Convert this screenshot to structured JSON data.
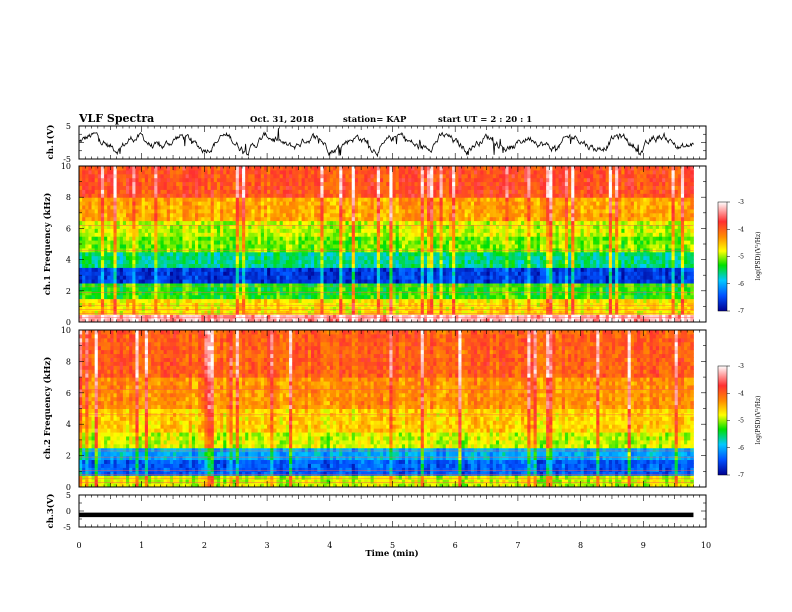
{
  "header": {
    "title": "VLF Spectra",
    "date": "Oct. 31, 2018",
    "station": "station= KAP",
    "start": "start  UT =   2 : 20 : 1"
  },
  "chart_data": [
    {
      "id": "ch1-waveform",
      "type": "line",
      "ylabel": "ch.1(V)",
      "ylim": [
        -5,
        5
      ],
      "yticks": [
        "5",
        "-5"
      ],
      "xlim": [
        0,
        10
      ],
      "x_end": 9.8,
      "trace": "noisy waveform, mostly between -3 and +3 V"
    },
    {
      "id": "ch1-spectrogram",
      "type": "heatmap",
      "ylabel": "ch.1 Frequency  (kHz)",
      "ylim": [
        0,
        10
      ],
      "yticks": [
        "0",
        "2",
        "4",
        "6",
        "8",
        "10"
      ],
      "xlim": [
        0,
        10
      ],
      "x_end": 9.8,
      "colorbar": {
        "label": "log(PSD)(V²/Hz)",
        "range": [
          -7,
          -3
        ],
        "ticks": [
          "-3",
          "-4",
          "-5",
          "-6",
          "-7"
        ]
      },
      "bands": [
        {
          "from": 0,
          "to": 0.4,
          "level": -3.3
        },
        {
          "from": 0.4,
          "to": 1.6,
          "level": -4.7
        },
        {
          "from": 1.6,
          "to": 2.6,
          "level": -5.3
        },
        {
          "from": 2.6,
          "to": 3.4,
          "level": -6.6
        },
        {
          "from": 3.4,
          "to": 4.4,
          "level": -5.6
        },
        {
          "from": 4.4,
          "to": 5.4,
          "level": -5.1
        },
        {
          "from": 5.4,
          "to": 6.6,
          "level": -4.9
        },
        {
          "from": 6.6,
          "to": 8.0,
          "level": -4.4
        },
        {
          "from": 8.0,
          "to": 10,
          "level": -3.9
        }
      ]
    },
    {
      "id": "ch2-spectrogram",
      "type": "heatmap",
      "ylabel": "ch.2 Frequency  (kHz)",
      "ylim": [
        0,
        10
      ],
      "yticks": [
        "0",
        "2",
        "4",
        "6",
        "8",
        "10"
      ],
      "xlim": [
        0,
        10
      ],
      "x_end": 9.8,
      "colorbar": {
        "label": "log(PSD)(V²/Hz)",
        "range": [
          -7,
          -3
        ],
        "ticks": [
          "-3",
          "-4",
          "-5",
          "-6",
          "-7"
        ]
      },
      "bands": [
        {
          "from": 0,
          "to": 0.8,
          "level": -4.9
        },
        {
          "from": 0.8,
          "to": 1.8,
          "level": -6.4
        },
        {
          "from": 1.8,
          "to": 2.6,
          "level": -6.0
        },
        {
          "from": 2.6,
          "to": 3.6,
          "level": -4.9
        },
        {
          "from": 3.6,
          "to": 5.0,
          "level": -4.6
        },
        {
          "from": 5.0,
          "to": 7.0,
          "level": -4.3
        },
        {
          "from": 7.0,
          "to": 10,
          "level": -4.0
        }
      ]
    },
    {
      "id": "ch3-waveform",
      "type": "line",
      "ylabel": "ch.3(V)",
      "ylim": [
        -5,
        5
      ],
      "yticks": [
        "5",
        "0",
        "-5"
      ],
      "xlim": [
        0,
        10
      ],
      "x_end": 9.8,
      "value": -1.2,
      "xlabel": "Time  (min)",
      "xticks": [
        "0",
        "1",
        "2",
        "3",
        "4",
        "5",
        "6",
        "7",
        "8",
        "9",
        "10"
      ]
    }
  ]
}
